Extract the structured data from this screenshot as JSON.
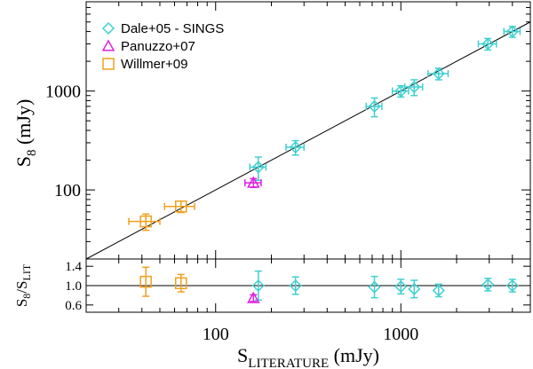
{
  "colors": {
    "axes": "#000000",
    "Dale+05 - SINGS": "#40d0d0",
    "Panuzzo+07": "#e020e0",
    "Willmer+09": "#f0a020"
  },
  "chart_data": [
    {
      "type": "scatter",
      "panel": "top",
      "xscale": "log",
      "yscale": "log",
      "xlim": [
        20,
        5000
      ],
      "ylim": [
        20,
        8000
      ],
      "ylabel_main": "S",
      "ylabel_sub": "8",
      "ylabel_unit": " (mJy)",
      "yticks": [
        100,
        1000
      ],
      "ytick_labels": [
        "100",
        "1000"
      ],
      "one_to_one_line": true,
      "legend_position": "top-left",
      "series": [
        {
          "name": "Dale+05 - SINGS",
          "marker": "diamond",
          "color": "#40d0d0",
          "x": [
            170,
            270,
            720,
            1000,
            1180,
            1600,
            2950,
            4000
          ],
          "y": [
            170,
            270,
            700,
            1000,
            1100,
            1500,
            3000,
            4000
          ],
          "xerr": [
            17,
            30,
            70,
            100,
            130,
            200,
            330,
            400
          ],
          "yerr": [
            45,
            45,
            150,
            130,
            200,
            200,
            400,
            500
          ]
        },
        {
          "name": "Panuzzo+07",
          "marker": "triangle",
          "color": "#e020e0",
          "x": [
            160
          ],
          "y": [
            118
          ],
          "xerr": [
            16
          ],
          "yerr": [
            12
          ]
        },
        {
          "name": "Willmer+09",
          "marker": "square",
          "color": "#f0a020",
          "x": [
            42,
            65
          ],
          "y": [
            48,
            68
          ],
          "xerr": [
            8,
            12
          ],
          "yerr": [
            9,
            9
          ]
        }
      ]
    },
    {
      "type": "scatter",
      "panel": "bottom",
      "xscale": "log",
      "yscale": "linear",
      "xlim": [
        20,
        5000
      ],
      "ylim": [
        0.45,
        1.55
      ],
      "xlabel_main": "S",
      "xlabel_sub": "LITERATURE",
      "xlabel_unit": " (mJy)",
      "ylabel_main": "S",
      "ylabel_sub1": "8",
      "ylabel_mid": "/S",
      "ylabel_sub2": "LIT",
      "xticks": [
        100,
        1000
      ],
      "xtick_labels": [
        "100",
        "1000"
      ],
      "yticks": [
        0.6,
        1.0,
        1.4
      ],
      "ytick_labels": [
        "0.6",
        "1.0",
        "1.4"
      ],
      "reference_line": 1.0,
      "series": [
        {
          "name": "Dale+05 - SINGS",
          "marker": "diamond",
          "color": "#40d0d0",
          "x": [
            170,
            270,
            720,
            1000,
            1180,
            1600,
            2950,
            4000
          ],
          "y": [
            1.0,
            1.0,
            0.97,
            0.98,
            0.93,
            0.9,
            1.02,
            1.0
          ],
          "yerr": [
            0.3,
            0.18,
            0.22,
            0.15,
            0.18,
            0.13,
            0.13,
            0.13
          ],
          "xerr": [
            17,
            30,
            70,
            100,
            130,
            200,
            330,
            400
          ]
        },
        {
          "name": "Panuzzo+07",
          "marker": "triangle",
          "color": "#e020e0",
          "x": [
            160
          ],
          "y": [
            0.74
          ],
          "yerr": [
            0.07
          ],
          "xerr": [
            0
          ]
        },
        {
          "name": "Willmer+09",
          "marker": "square",
          "color": "#f0a020",
          "x": [
            42,
            65
          ],
          "y": [
            1.08,
            1.05
          ],
          "yerr": [
            0.3,
            0.18
          ],
          "xerr": [
            0,
            0
          ]
        }
      ]
    }
  ]
}
